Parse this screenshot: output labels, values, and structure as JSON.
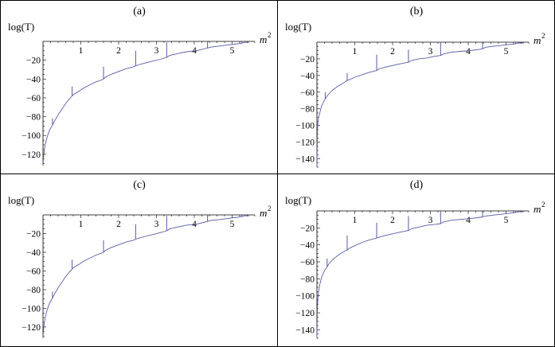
{
  "chart_data": [
    {
      "type": "line",
      "panel_label": "(a)",
      "ylabel": "log(T)",
      "xlabel": "m",
      "xlabel_superscript": "2",
      "x_ticks": [
        1,
        2,
        3,
        4,
        5
      ],
      "y_ticks": [
        -20,
        -40,
        -60,
        -80,
        -100,
        -120
      ],
      "xlim": [
        0,
        5.6
      ],
      "ylim": [
        -132,
        0
      ],
      "color": "#5a5aa8",
      "series": [
        {
          "segments": [
            {
              "x": [
                0.0,
                0.01,
                0.02,
                0.04,
                0.07,
                0.1,
                0.14,
                0.18,
                0.22,
                0.25
              ],
              "y": [
                -132,
                -125,
                -120,
                -114,
                -108,
                -103,
                -98,
                -94,
                -91,
                -89
              ]
            },
            {
              "x": [
                0.25,
                0.3,
                0.4,
                0.5,
                0.6,
                0.7,
                0.77
              ],
              "y": [
                -89,
                -85,
                -78,
                -72,
                -66,
                -61,
                -58
              ]
            },
            {
              "x": [
                0.77,
                0.82,
                0.95,
                1.1,
                1.25,
                1.4,
                1.55,
                1.6
              ],
              "y": [
                -58,
                -56,
                -53,
                -49,
                -46,
                -43,
                -41,
                -40
              ]
            },
            {
              "x": [
                1.6,
                1.65,
                1.8,
                2.0,
                2.2,
                2.4,
                2.45
              ],
              "y": [
                -40,
                -38,
                -35,
                -32,
                -29,
                -27,
                -26
              ]
            },
            {
              "x": [
                2.45,
                2.52,
                2.7,
                2.9,
                3.1,
                3.27
              ],
              "y": [
                -26,
                -25,
                -23,
                -21,
                -19,
                -17
              ]
            },
            {
              "x": [
                3.27,
                3.35,
                3.55,
                3.8,
                4.05,
                4.25,
                4.35
              ],
              "y": [
                -17,
                -15,
                -13,
                -11,
                -10,
                -8,
                -7
              ]
            },
            {
              "x": [
                4.35,
                4.45,
                4.65,
                4.85,
                5.05,
                5.25
              ],
              "y": [
                -7,
                -6,
                -5,
                -4,
                -3,
                -2
              ]
            },
            {
              "x": [
                5.25,
                5.32,
                5.4,
                5.45
              ],
              "y": [
                -2,
                -1,
                -1,
                -1
              ]
            }
          ],
          "spikes": [
            {
              "x": 0.25,
              "y_base": -89,
              "y_top": -82
            },
            {
              "x": 0.77,
              "y_base": -58,
              "y_top": -48
            },
            {
              "x": 1.6,
              "y_base": -40,
              "y_top": -27
            },
            {
              "x": 2.45,
              "y_base": -26,
              "y_top": -10
            },
            {
              "x": 3.27,
              "y_base": -17,
              "y_top": -1
            },
            {
              "x": 4.35,
              "y_base": -7,
              "y_top": 0
            },
            {
              "x": 5.25,
              "y_base": -2,
              "y_top": 0
            }
          ]
        }
      ]
    },
    {
      "type": "line",
      "panel_label": "(b)",
      "ylabel": "log(T)",
      "xlabel": "m",
      "xlabel_superscript": "2",
      "x_ticks": [
        1,
        2,
        3,
        4,
        5
      ],
      "y_ticks": [
        -20,
        -40,
        -60,
        -80,
        -100,
        -120,
        -140
      ],
      "xlim": [
        0,
        5.6
      ],
      "ylim": [
        -150,
        0
      ],
      "color": "#5a5aa8",
      "series": [
        {
          "segments": [
            {
              "x": [
                0.0,
                0.01,
                0.02,
                0.04,
                0.08,
                0.12,
                0.17,
                0.22
              ],
              "y": [
                -150,
                -110,
                -100,
                -92,
                -84,
                -77,
                -72,
                -68
              ]
            },
            {
              "x": [
                0.22,
                0.28,
                0.4,
                0.55,
                0.7,
                0.8
              ],
              "y": [
                -68,
                -64,
                -58,
                -53,
                -49,
                -46
              ]
            },
            {
              "x": [
                0.8,
                0.86,
                1.0,
                1.2,
                1.4,
                1.58
              ],
              "y": [
                -46,
                -45,
                -42,
                -39,
                -36,
                -34
              ]
            },
            {
              "x": [
                1.58,
                1.64,
                1.8,
                2.0,
                2.2,
                2.42
              ],
              "y": [
                -34,
                -32,
                -30,
                -28,
                -26,
                -24
              ]
            },
            {
              "x": [
                2.42,
                2.5,
                2.7,
                2.9,
                3.1,
                3.27
              ],
              "y": [
                -24,
                -22,
                -20,
                -19,
                -17,
                -16
              ]
            },
            {
              "x": [
                3.27,
                3.35,
                3.55,
                3.8,
                4.05,
                4.25,
                4.38
              ],
              "y": [
                -16,
                -14,
                -12,
                -11,
                -10,
                -9,
                -8
              ]
            },
            {
              "x": [
                4.38,
                4.46,
                4.65,
                4.85,
                5.05,
                5.25
              ],
              "y": [
                -8,
                -6,
                -5,
                -4,
                -3,
                -2
              ]
            },
            {
              "x": [
                5.25,
                5.32,
                5.4,
                5.47
              ],
              "y": [
                -2,
                -1,
                -1,
                -1
              ]
            }
          ],
          "spikes": [
            {
              "x": 0.22,
              "y_base": -68,
              "y_top": -60
            },
            {
              "x": 0.8,
              "y_base": -46,
              "y_top": -37
            },
            {
              "x": 1.58,
              "y_base": -34,
              "y_top": -15
            },
            {
              "x": 2.42,
              "y_base": -24,
              "y_top": -9
            },
            {
              "x": 3.27,
              "y_base": -16,
              "y_top": 0
            },
            {
              "x": 4.38,
              "y_base": -8,
              "y_top": 0
            },
            {
              "x": 5.25,
              "y_base": -2,
              "y_top": 0
            }
          ]
        }
      ]
    },
    {
      "type": "line",
      "panel_label": "(c)",
      "ylabel": "log(T)",
      "xlabel": "m",
      "xlabel_superscript": "2",
      "x_ticks": [
        1,
        2,
        3,
        4,
        5
      ],
      "y_ticks": [
        -20,
        -40,
        -60,
        -80,
        -100,
        -120
      ],
      "xlim": [
        0,
        5.6
      ],
      "ylim": [
        -132,
        0
      ],
      "color": "#5a5aa8",
      "series": [
        {
          "segments": [
            {
              "x": [
                0.0,
                0.01,
                0.02,
                0.04,
                0.07,
                0.1,
                0.14,
                0.18,
                0.22,
                0.25
              ],
              "y": [
                -132,
                -125,
                -120,
                -114,
                -108,
                -103,
                -98,
                -94,
                -91,
                -89
              ]
            },
            {
              "x": [
                0.25,
                0.3,
                0.4,
                0.5,
                0.6,
                0.7,
                0.77
              ],
              "y": [
                -89,
                -85,
                -78,
                -72,
                -66,
                -61,
                -58
              ]
            },
            {
              "x": [
                0.77,
                0.82,
                0.95,
                1.1,
                1.25,
                1.4,
                1.55,
                1.6
              ],
              "y": [
                -58,
                -56,
                -53,
                -49,
                -46,
                -43,
                -41,
                -40
              ]
            },
            {
              "x": [
                1.6,
                1.65,
                1.8,
                2.0,
                2.2,
                2.4,
                2.45
              ],
              "y": [
                -40,
                -38,
                -35,
                -32,
                -29,
                -27,
                -26
              ]
            },
            {
              "x": [
                2.45,
                2.52,
                2.7,
                2.9,
                3.1,
                3.27
              ],
              "y": [
                -26,
                -25,
                -23,
                -21,
                -19,
                -17
              ]
            },
            {
              "x": [
                3.27,
                3.35,
                3.55,
                3.8,
                4.05,
                4.25,
                4.35
              ],
              "y": [
                -17,
                -15,
                -13,
                -11,
                -10,
                -8,
                -7
              ]
            },
            {
              "x": [
                4.35,
                4.45,
                4.65,
                4.85,
                5.05,
                5.25
              ],
              "y": [
                -7,
                -6,
                -5,
                -4,
                -3,
                -2
              ]
            },
            {
              "x": [
                5.25,
                5.32,
                5.4,
                5.45
              ],
              "y": [
                -2,
                -1,
                -1,
                -1
              ]
            }
          ],
          "spikes": [
            {
              "x": 0.25,
              "y_base": -89,
              "y_top": -82
            },
            {
              "x": 0.77,
              "y_base": -58,
              "y_top": -48
            },
            {
              "x": 1.6,
              "y_base": -40,
              "y_top": -27
            },
            {
              "x": 2.45,
              "y_base": -26,
              "y_top": -10
            },
            {
              "x": 3.27,
              "y_base": -17,
              "y_top": -1
            },
            {
              "x": 4.35,
              "y_base": -7,
              "y_top": 0
            },
            {
              "x": 5.25,
              "y_base": -2,
              "y_top": 0
            }
          ]
        }
      ]
    },
    {
      "type": "line",
      "panel_label": "(d)",
      "ylabel": "log(T)",
      "xlabel": "m",
      "xlabel_superscript": "2",
      "x_ticks": [
        1,
        2,
        3,
        4,
        5
      ],
      "y_ticks": [
        -20,
        -40,
        -60,
        -80,
        -100,
        -120,
        -140
      ],
      "xlim": [
        0,
        5.6
      ],
      "ylim": [
        -150,
        0
      ],
      "color": "#5a5aa8",
      "series": [
        {
          "segments": [
            {
              "x": [
                0.0,
                0.01,
                0.02,
                0.04,
                0.08,
                0.12,
                0.17,
                0.22,
                0.27
              ],
              "y": [
                -150,
                -118,
                -106,
                -96,
                -86,
                -79,
                -73,
                -69,
                -66
              ]
            },
            {
              "x": [
                0.27,
                0.32,
                0.45,
                0.6,
                0.75,
                0.8
              ],
              "y": [
                -66,
                -62,
                -56,
                -51,
                -47,
                -46
              ]
            },
            {
              "x": [
                0.8,
                0.86,
                1.0,
                1.2,
                1.4,
                1.58
              ],
              "y": [
                -46,
                -44,
                -41,
                -37,
                -34,
                -32
              ]
            },
            {
              "x": [
                1.58,
                1.64,
                1.8,
                2.0,
                2.2,
                2.42
              ],
              "y": [
                -32,
                -31,
                -29,
                -27,
                -25,
                -23
              ]
            },
            {
              "x": [
                2.42,
                2.5,
                2.7,
                2.9,
                3.1,
                3.27
              ],
              "y": [
                -23,
                -21,
                -19,
                -17,
                -16,
                -15
              ]
            },
            {
              "x": [
                3.27,
                3.35,
                3.55,
                3.8,
                4.05,
                4.25,
                4.38
              ],
              "y": [
                -15,
                -13,
                -11,
                -10,
                -9,
                -8,
                -7
              ]
            },
            {
              "x": [
                4.38,
                4.46,
                4.65,
                4.85,
                5.05,
                5.25
              ],
              "y": [
                -7,
                -6,
                -5,
                -4,
                -3,
                -2
              ]
            },
            {
              "x": [
                5.25,
                5.32,
                5.4,
                5.47
              ],
              "y": [
                -2,
                -1,
                -1,
                -1
              ]
            }
          ],
          "spikes": [
            {
              "x": 0.27,
              "y_base": -66,
              "y_top": -56
            },
            {
              "x": 0.8,
              "y_base": -46,
              "y_top": -29
            },
            {
              "x": 1.58,
              "y_base": -32,
              "y_top": -14
            },
            {
              "x": 2.42,
              "y_base": -23,
              "y_top": -6
            },
            {
              "x": 3.27,
              "y_base": -15,
              "y_top": 0
            },
            {
              "x": 4.38,
              "y_base": -7,
              "y_top": 0
            },
            {
              "x": 5.25,
              "y_base": -2,
              "y_top": 0
            }
          ]
        }
      ]
    }
  ]
}
